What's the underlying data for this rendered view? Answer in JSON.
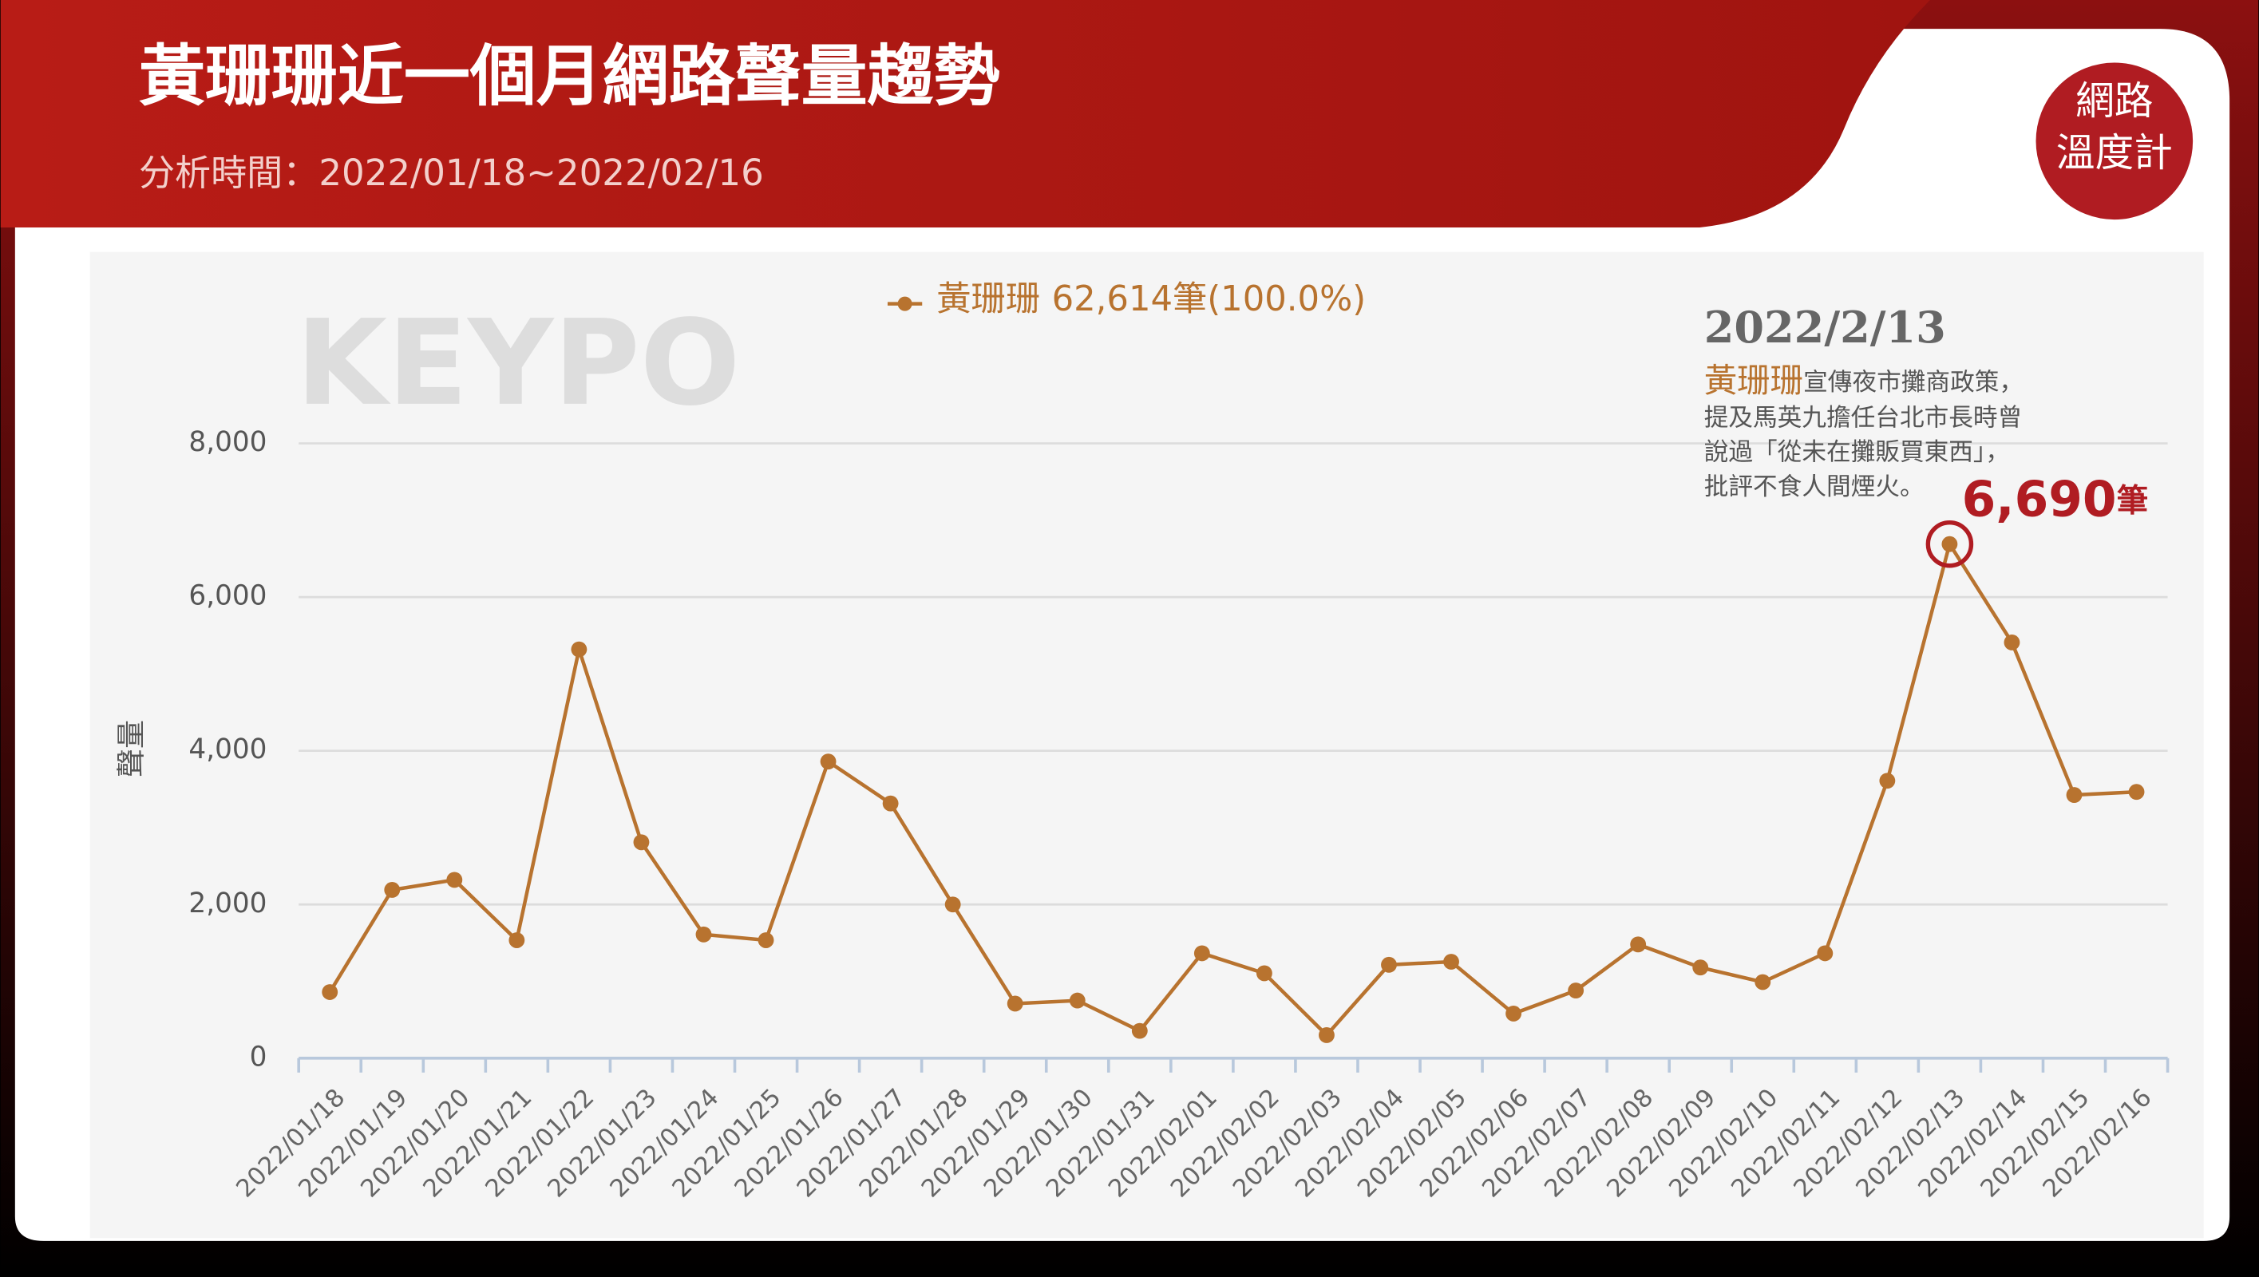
{
  "header": {
    "title": "黃珊珊近一個月網路聲量趨勢",
    "subtitle": "分析時間：2022/01/18~2022/02/16"
  },
  "badge": {
    "line1": "網路",
    "line2": "溫度計"
  },
  "watermark": "KEYPO",
  "chart_data": {
    "type": "line",
    "y_label": "聲量",
    "legend_note": "62,614筆(100.0%)",
    "categories": [
      "2022/01/18",
      "2022/01/19",
      "2022/01/20",
      "2022/01/21",
      "2022/01/22",
      "2022/01/23",
      "2022/01/24",
      "2022/01/25",
      "2022/01/26",
      "2022/01/27",
      "2022/01/28",
      "2022/01/29",
      "2022/01/30",
      "2022/01/31",
      "2022/02/01",
      "2022/02/02",
      "2022/02/03",
      "2022/02/04",
      "2022/02/05",
      "2022/02/06",
      "2022/02/07",
      "2022/02/08",
      "2022/02/09",
      "2022/02/10",
      "2022/02/11",
      "2022/02/12",
      "2022/02/13",
      "2022/02/14",
      "2022/02/15",
      "2022/02/16"
    ],
    "series": [
      {
        "name": "黃珊珊",
        "color": "#b8732f",
        "values": [
          860,
          2190,
          2320,
          1535,
          5320,
          2810,
          1610,
          1535,
          3860,
          3315,
          2000,
          710,
          750,
          355,
          1365,
          1105,
          300,
          1215,
          1255,
          580,
          880,
          1480,
          1180,
          990,
          1365,
          3610,
          6690,
          5410,
          3425,
          3465
        ]
      }
    ],
    "ylim": [
      0,
      8000
    ],
    "yticks": [
      0,
      {
        "value": 2000,
        "label": "2,000"
      },
      {
        "value": 4000,
        "label": "4,000"
      },
      {
        "value": 6000,
        "label": "6,000"
      },
      {
        "value": 8000,
        "label": "8,000"
      }
    ],
    "grid": true,
    "annotation": {
      "date": "2022/2/13",
      "highlight": "黃珊珊",
      "lines": [
        "宣傳夜市攤商政策，",
        "提及馬英九擔任台北市長時曾",
        "說過「從未在攤販買東西」，",
        "批評不食人間煙火。"
      ],
      "value": 6690,
      "value_label": "6,690",
      "unit": "筆",
      "color": "#b01c22"
    }
  }
}
